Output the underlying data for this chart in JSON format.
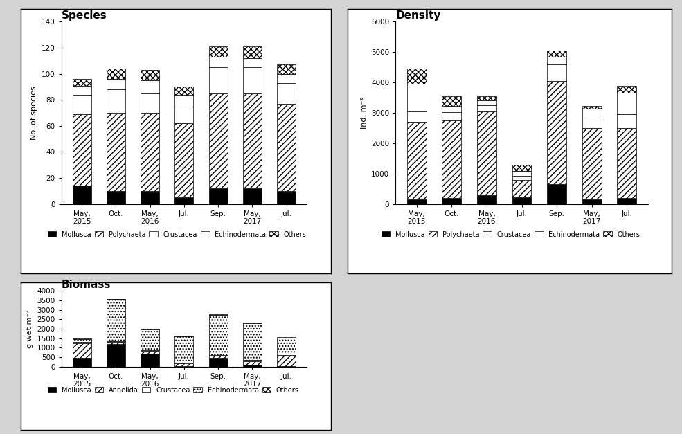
{
  "categories": [
    "May,\n2015",
    "Oct.",
    "May,\n2016",
    "Jul.",
    "Sep.",
    "May,\n2017",
    "Jul."
  ],
  "species": {
    "title": "Species",
    "ylabel": "No. of species",
    "ylim": [
      0,
      140
    ],
    "yticks": [
      0,
      20,
      40,
      60,
      80,
      100,
      120,
      140
    ],
    "Mollusca": [
      14,
      10,
      10,
      5,
      12,
      12,
      10
    ],
    "Polychaeta": [
      55,
      60,
      60,
      57,
      73,
      73,
      67
    ],
    "Crustacea": [
      15,
      18,
      15,
      13,
      20,
      20,
      16
    ],
    "Echinodermata": [
      7,
      8,
      10,
      9,
      8,
      7,
      7
    ],
    "Others": [
      5,
      8,
      8,
      6,
      8,
      9,
      7
    ]
  },
  "density": {
    "title": "Density",
    "ylabel": "Ind. m⁻²",
    "ylim": [
      0,
      6000
    ],
    "yticks": [
      0,
      1000,
      2000,
      3000,
      4000,
      5000,
      6000
    ],
    "Mollusca": [
      150,
      200,
      300,
      230,
      650,
      150,
      200
    ],
    "Polychaeta": [
      2550,
      2550,
      2750,
      550,
      3400,
      2350,
      2300
    ],
    "Crustacea": [
      350,
      280,
      200,
      150,
      550,
      280,
      450
    ],
    "Echinodermata": [
      900,
      200,
      150,
      150,
      250,
      350,
      700
    ],
    "Others": [
      500,
      320,
      150,
      220,
      200,
      100,
      250
    ]
  },
  "biomass": {
    "title": "Biomass",
    "ylabel": "g wet m⁻²",
    "ylim": [
      0,
      4000
    ],
    "yticks": [
      0,
      500,
      1000,
      1500,
      2000,
      2500,
      3000,
      3500,
      4000
    ],
    "Mollusca": [
      480,
      1200,
      700,
      30,
      480,
      100,
      30
    ],
    "Annelida": [
      750,
      100,
      120,
      130,
      100,
      200,
      590
    ],
    "Crustacea": [
      80,
      50,
      50,
      40,
      40,
      50,
      50
    ],
    "Echinodermata": [
      140,
      2200,
      1100,
      1380,
      2110,
      1940,
      870
    ],
    "Others": [
      50,
      10,
      20,
      10,
      20,
      20,
      20
    ]
  },
  "bar_width": 0.55,
  "fig_bg": "#d4d4d4",
  "panel_bg": "#ffffff"
}
